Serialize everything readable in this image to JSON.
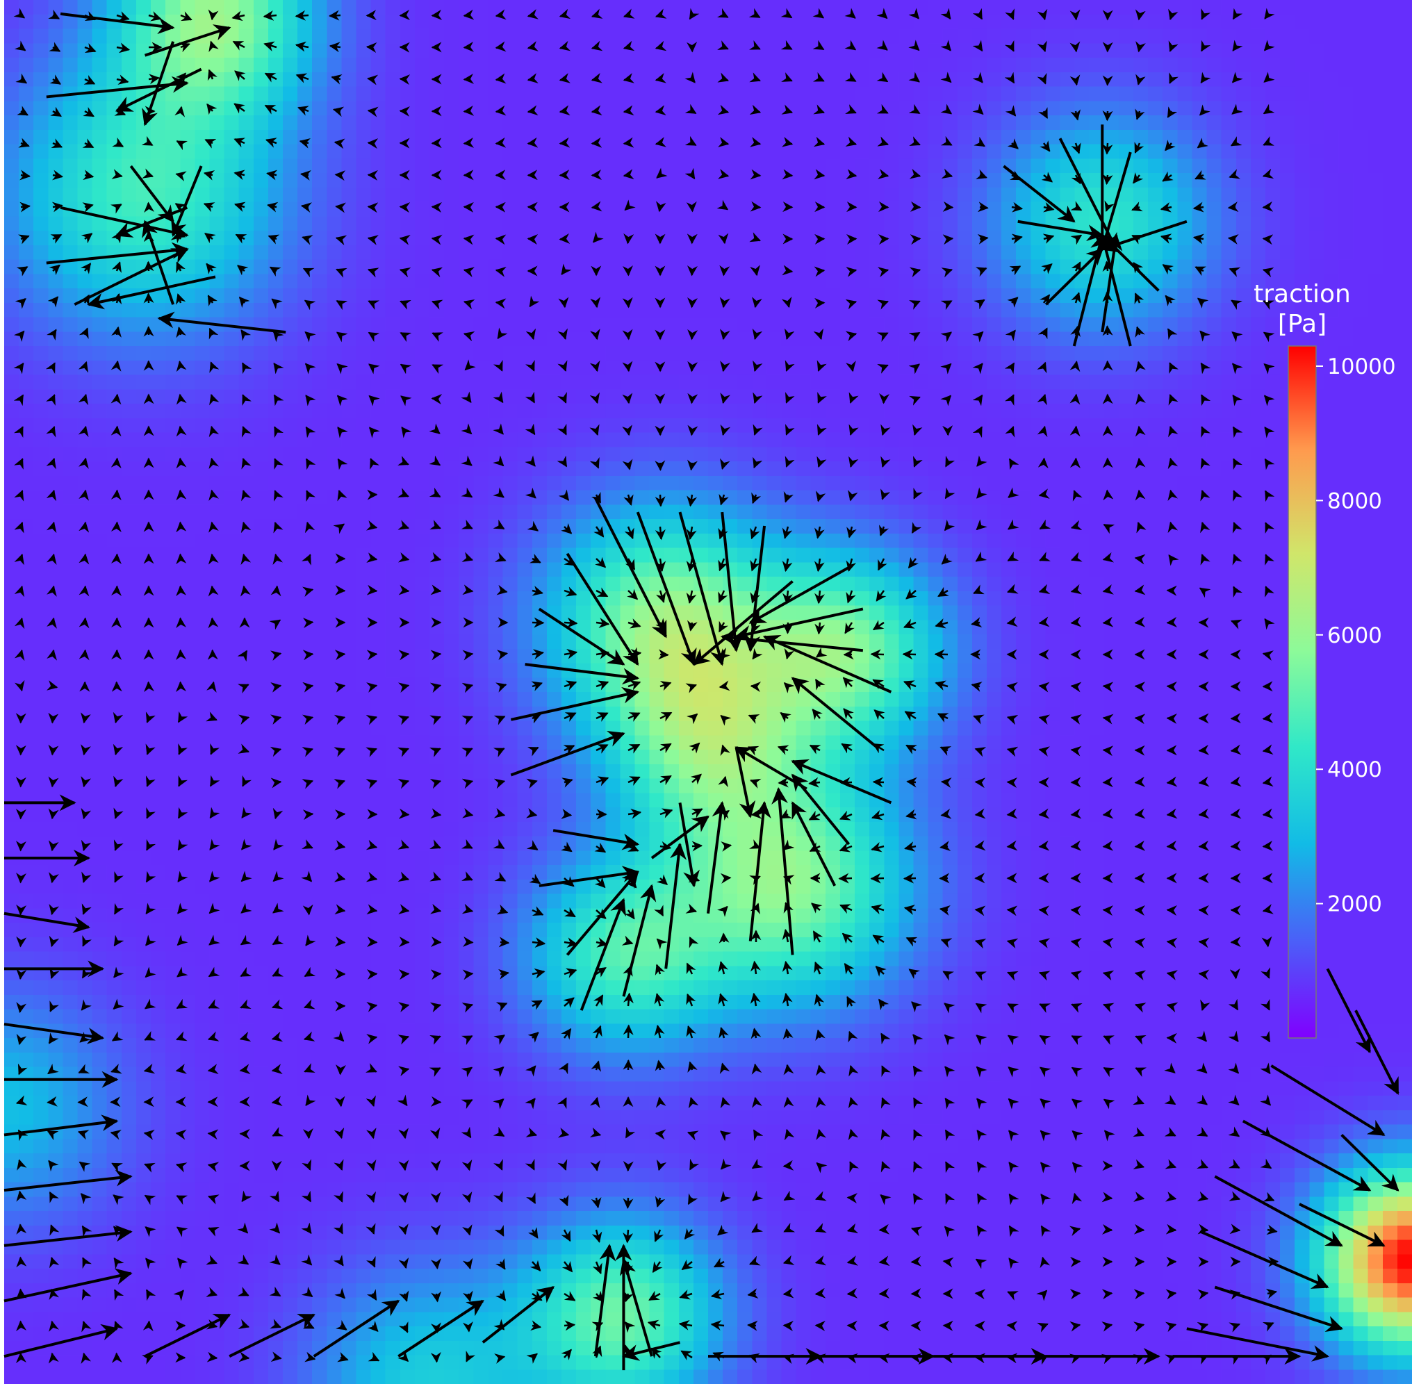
{
  "chart_data": {
    "type": "heatmap",
    "overlay": "quiver",
    "description": "traction force microscopy map: traction magnitude heatmap (rainbow colormap) with black traction vector arrows",
    "colormap": "rainbow",
    "grid": false,
    "axes_visible": false,
    "colorbar": {
      "title_line1": "traction",
      "title_line2": "[Pa]",
      "placement": "right",
      "vmin": 0,
      "vmax": 10300,
      "ticks": [
        2000,
        4000,
        6000,
        8000,
        10000
      ],
      "tick_labels": [
        "2000",
        "4000",
        "6000",
        "8000",
        "10000"
      ]
    },
    "field_extent": {
      "x": [
        0,
        1
      ],
      "y": [
        0,
        1
      ]
    },
    "background_level_pa": 700,
    "hotspots_pa": [
      {
        "name": "upper-left cluster",
        "x": 0.1,
        "y": 0.14,
        "peak": 4600,
        "spread": 0.07
      },
      {
        "name": "top edge",
        "x": 0.15,
        "y": 0.01,
        "peak": 5600,
        "spread": 0.05
      },
      {
        "name": "upper-right adhesion",
        "x": 0.78,
        "y": 0.16,
        "peak": 4200,
        "spread": 0.055
      },
      {
        "name": "central cell upper lobe",
        "x": 0.47,
        "y": 0.45,
        "peak": 5800,
        "spread": 0.06
      },
      {
        "name": "central cell right lobe",
        "x": 0.6,
        "y": 0.47,
        "peak": 5300,
        "spread": 0.05
      },
      {
        "name": "central cell middle",
        "x": 0.5,
        "y": 0.54,
        "peak": 4200,
        "spread": 0.05
      },
      {
        "name": "central cell lower lobe",
        "x": 0.56,
        "y": 0.64,
        "peak": 5600,
        "spread": 0.06
      },
      {
        "name": "central cell left-lower lobe",
        "x": 0.44,
        "y": 0.69,
        "peak": 4600,
        "spread": 0.05
      },
      {
        "name": "bottom center",
        "x": 0.44,
        "y": 0.95,
        "peak": 5200,
        "spread": 0.05
      },
      {
        "name": "bottom-right corner",
        "x": 1.0,
        "y": 0.91,
        "peak": 10300,
        "spread": 0.045
      },
      {
        "name": "left edge",
        "x": 0.0,
        "y": 0.8,
        "peak": 3000,
        "spread": 0.06
      },
      {
        "name": "bottom edge",
        "x": 0.3,
        "y": 1.0,
        "peak": 3400,
        "spread": 0.06
      }
    ],
    "vectors": [
      [
        0.04,
        0.01,
        0.08,
        0.01
      ],
      [
        0.1,
        0.04,
        0.06,
        -0.02
      ],
      [
        0.14,
        0.05,
        -0.06,
        0.03
      ],
      [
        0.03,
        0.07,
        0.1,
        -0.01
      ],
      [
        0.12,
        0.03,
        -0.02,
        0.06
      ],
      [
        0.09,
        0.12,
        0.03,
        0.04
      ],
      [
        0.13,
        0.15,
        -0.05,
        0.02
      ],
      [
        0.04,
        0.15,
        0.09,
        0.02
      ],
      [
        0.03,
        0.19,
        0.1,
        -0.01
      ],
      [
        0.15,
        0.2,
        -0.09,
        0.02
      ],
      [
        0.12,
        0.22,
        -0.02,
        -0.06
      ],
      [
        0.05,
        0.22,
        0.08,
        -0.04
      ],
      [
        0.14,
        0.12,
        -0.02,
        0.05
      ],
      [
        0.2,
        0.24,
        -0.09,
        -0.01
      ],
      [
        0.75,
        0.1,
        0.04,
        0.08
      ],
      [
        0.78,
        0.09,
        0.0,
        0.09
      ],
      [
        0.8,
        0.11,
        -0.02,
        0.07
      ],
      [
        0.84,
        0.16,
        -0.06,
        0.02
      ],
      [
        0.82,
        0.21,
        -0.04,
        -0.04
      ],
      [
        0.78,
        0.24,
        0.01,
        -0.07
      ],
      [
        0.74,
        0.22,
        0.04,
        -0.04
      ],
      [
        0.72,
        0.16,
        0.06,
        0.01
      ],
      [
        0.71,
        0.12,
        0.05,
        0.04
      ],
      [
        0.76,
        0.25,
        0.02,
        -0.08
      ],
      [
        0.8,
        0.25,
        -0.02,
        -0.08
      ],
      [
        0.42,
        0.36,
        0.05,
        0.1
      ],
      [
        0.45,
        0.37,
        0.04,
        0.11
      ],
      [
        0.48,
        0.37,
        0.03,
        0.11
      ],
      [
        0.51,
        0.37,
        0.01,
        0.1
      ],
      [
        0.54,
        0.38,
        -0.01,
        0.09
      ],
      [
        0.6,
        0.41,
        -0.07,
        0.04
      ],
      [
        0.61,
        0.44,
        -0.09,
        0.02
      ],
      [
        0.61,
        0.47,
        -0.1,
        -0.01
      ],
      [
        0.63,
        0.5,
        -0.09,
        -0.04
      ],
      [
        0.62,
        0.54,
        -0.06,
        -0.05
      ],
      [
        0.63,
        0.58,
        -0.07,
        -0.03
      ],
      [
        0.6,
        0.61,
        -0.04,
        -0.05
      ],
      [
        0.59,
        0.64,
        -0.03,
        -0.06
      ],
      [
        0.56,
        0.69,
        -0.01,
        -0.12
      ],
      [
        0.53,
        0.68,
        0.01,
        -0.1
      ],
      [
        0.5,
        0.66,
        0.01,
        -0.08
      ],
      [
        0.47,
        0.7,
        0.01,
        -0.09
      ],
      [
        0.44,
        0.72,
        0.02,
        -0.08
      ],
      [
        0.41,
        0.73,
        0.03,
        -0.08
      ],
      [
        0.4,
        0.69,
        0.05,
        -0.06
      ],
      [
        0.38,
        0.64,
        0.07,
        -0.01
      ],
      [
        0.39,
        0.6,
        0.06,
        0.01
      ],
      [
        0.36,
        0.56,
        0.08,
        -0.03
      ],
      [
        0.36,
        0.52,
        0.09,
        -0.02
      ],
      [
        0.37,
        0.48,
        0.08,
        0.01
      ],
      [
        0.38,
        0.44,
        0.06,
        0.04
      ],
      [
        0.4,
        0.4,
        0.05,
        0.08
      ],
      [
        0.56,
        0.42,
        -0.07,
        0.06
      ],
      [
        0.57,
        0.57,
        -0.05,
        -0.03
      ],
      [
        0.48,
        0.58,
        0.01,
        0.06
      ],
      [
        0.46,
        0.62,
        0.04,
        -0.03
      ],
      [
        0.52,
        0.54,
        0.01,
        0.05
      ],
      [
        0.0,
        0.58,
        0.05,
        0.0
      ],
      [
        0.0,
        0.62,
        0.06,
        0.0
      ],
      [
        0.0,
        0.66,
        0.06,
        0.01
      ],
      [
        0.0,
        0.7,
        0.07,
        0.0
      ],
      [
        0.0,
        0.74,
        0.07,
        0.01
      ],
      [
        0.0,
        0.78,
        0.08,
        0.0
      ],
      [
        0.0,
        0.82,
        0.08,
        -0.01
      ],
      [
        0.0,
        0.86,
        0.09,
        -0.01
      ],
      [
        0.0,
        0.9,
        0.09,
        -0.01
      ],
      [
        0.0,
        0.94,
        0.09,
        -0.02
      ],
      [
        0.0,
        0.98,
        0.08,
        -0.02
      ],
      [
        0.1,
        0.98,
        0.06,
        -0.03
      ],
      [
        0.16,
        0.98,
        0.06,
        -0.03
      ],
      [
        0.22,
        0.98,
        0.06,
        -0.04
      ],
      [
        0.28,
        0.98,
        0.06,
        -0.04
      ],
      [
        0.34,
        0.97,
        0.05,
        -0.04
      ],
      [
        0.42,
        0.98,
        0.01,
        -0.08
      ],
      [
        0.44,
        0.99,
        0.0,
        -0.09
      ],
      [
        0.46,
        0.98,
        -0.02,
        -0.07
      ],
      [
        0.48,
        0.97,
        -0.04,
        0.01
      ],
      [
        0.5,
        0.98,
        0.08,
        0.0
      ],
      [
        0.58,
        0.98,
        0.08,
        0.0
      ],
      [
        0.66,
        0.98,
        0.08,
        0.0
      ],
      [
        0.74,
        0.98,
        0.08,
        0.0
      ],
      [
        0.83,
        0.98,
        0.09,
        0.0
      ],
      [
        0.9,
        0.77,
        0.08,
        0.05
      ],
      [
        0.88,
        0.81,
        0.09,
        0.05
      ],
      [
        0.86,
        0.85,
        0.09,
        0.05
      ],
      [
        0.85,
        0.89,
        0.09,
        0.04
      ],
      [
        0.86,
        0.93,
        0.09,
        0.03
      ],
      [
        0.84,
        0.96,
        0.1,
        0.02
      ],
      [
        0.94,
        0.7,
        0.03,
        0.06
      ],
      [
        0.96,
        0.73,
        0.03,
        0.06
      ],
      [
        0.92,
        0.87,
        0.06,
        0.03
      ],
      [
        0.95,
        0.82,
        0.04,
        0.04
      ]
    ]
  }
}
